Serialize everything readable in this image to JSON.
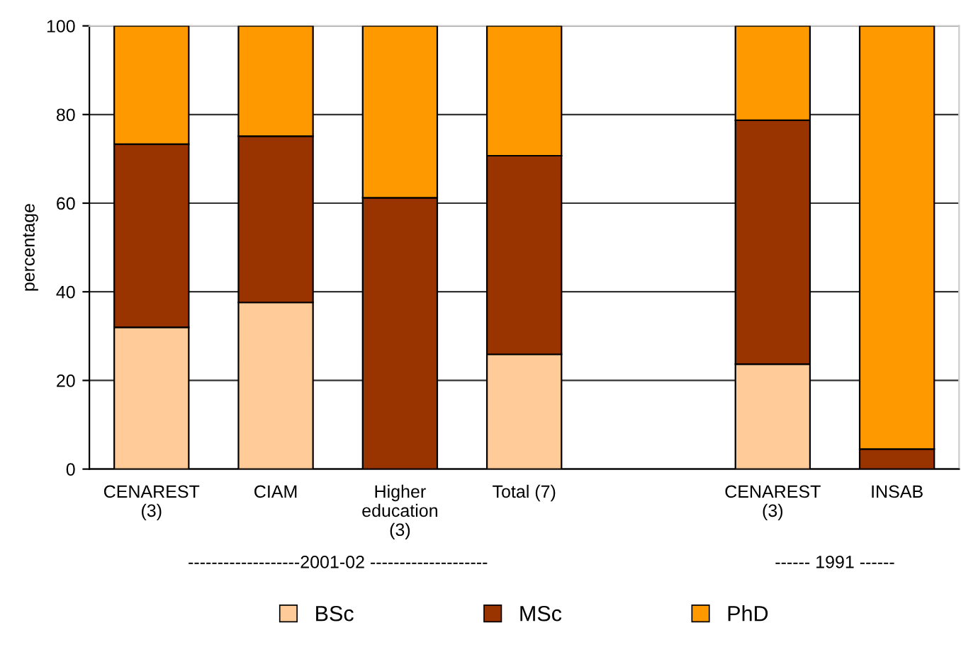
{
  "chart_data": {
    "type": "bar",
    "stacked": true,
    "ylabel": "percentage",
    "categories": [
      "CENAREST\n(3)",
      "CIAM",
      "Higher\neducation\n(3)",
      "Total (7)",
      null,
      "CENAREST\n(3)",
      "INSAB"
    ],
    "series": [
      {
        "name": "BSc",
        "color": "#ffcc99",
        "values": [
          32.0,
          37.6,
          0,
          25.9,
          null,
          23.7,
          0
        ]
      },
      {
        "name": "MSc",
        "color": "#993300",
        "values": [
          41.3,
          37.5,
          61.2,
          44.8,
          null,
          55.0,
          4.5
        ]
      },
      {
        "name": "PhD",
        "color": "#ff9900",
        "values": [
          26.7,
          24.9,
          38.8,
          29.3,
          null,
          21.3,
          95.5
        ]
      }
    ],
    "ylim": [
      0,
      100
    ],
    "yticks": [
      0,
      20,
      40,
      60,
      80,
      100
    ],
    "grid": "y",
    "legend": "bottom",
    "annotations": [
      "-------------------2001-02 --------------------",
      "------ 1991 ------"
    ]
  }
}
